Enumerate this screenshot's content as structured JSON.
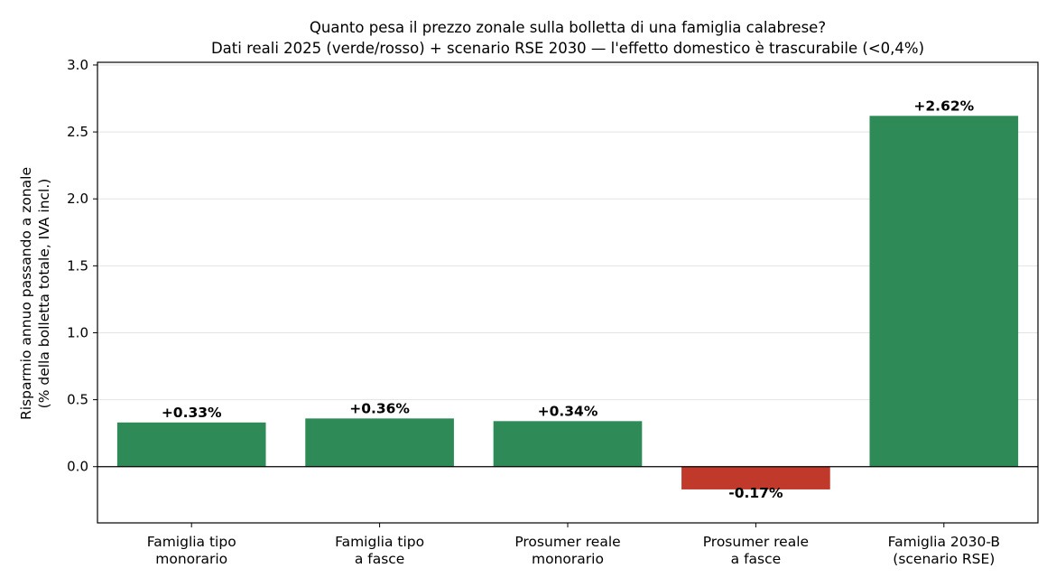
{
  "chart_data": {
    "type": "bar",
    "title": "Quanto pesa il prezzo zonale sulla bolletta di una famiglia calabrese?",
    "subtitle": "Dati reali 2025 (verde/rosso) + scenario RSE 2030 — l'effetto domestico è trascurabile (<0,4%)",
    "ylabel": "Risparmio annuo passando a zonale",
    "ylabel_sub": "(% della bolletta totale, IVA incl.)",
    "xlabel": "",
    "ylim": [
      -0.42,
      3.02
    ],
    "yticks": [
      0.0,
      0.5,
      1.0,
      1.5,
      2.0,
      2.5,
      3.0
    ],
    "ytick_labels": [
      "0.0",
      "0.5",
      "1.0",
      "1.5",
      "2.0",
      "2.5",
      "3.0"
    ],
    "grid": "y",
    "categories": [
      [
        "Famiglia tipo",
        "monorario"
      ],
      [
        "Famiglia tipo",
        "a fasce"
      ],
      [
        "Prosumer reale",
        "monorario"
      ],
      [
        "Prosumer reale",
        "a fasce"
      ],
      [
        "Famiglia 2030-B",
        "(scenario RSE)"
      ]
    ],
    "values": [
      0.33,
      0.36,
      0.34,
      -0.17,
      2.62
    ],
    "data_labels": [
      "+0.33%",
      "+0.36%",
      "+0.34%",
      "-0.17%",
      "+2.62%"
    ],
    "colors": [
      "#2e8b57",
      "#2e8b57",
      "#2e8b57",
      "#c0392b",
      "#2e8b57"
    ]
  }
}
